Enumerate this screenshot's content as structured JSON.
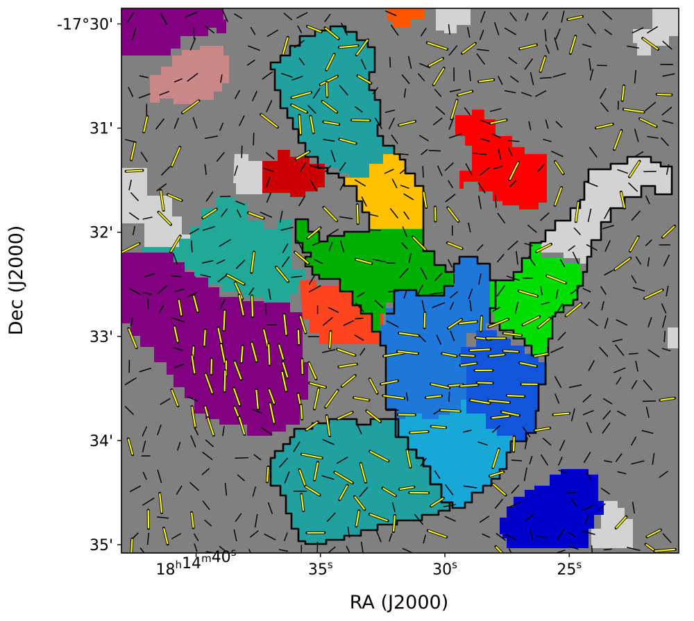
{
  "chart_data": {
    "type": "heatmap",
    "description_kind": "sky map with segmented regions and polarization vectors",
    "xlabel": "RA (J2000)",
    "ylabel": "Dec (J2000)",
    "x_ticks": [
      {
        "ra_sec": 40,
        "label_main": "18",
        "sup_h": "h",
        "label_min": "14",
        "sup_m": "m",
        "label_sec": "40",
        "sup_s": "s"
      },
      {
        "ra_sec": 35,
        "label_sec": "35",
        "sup_s": "s"
      },
      {
        "ra_sec": 30,
        "label_sec": "30",
        "sup_s": "s"
      },
      {
        "ra_sec": 25,
        "label_sec": "25",
        "sup_s": "s"
      }
    ],
    "y_ticks": [
      {
        "dec_arcmin": 30,
        "label": "-17°30'"
      },
      {
        "dec_arcmin": 31,
        "label": "31'"
      },
      {
        "dec_arcmin": 32,
        "label": "32'"
      },
      {
        "dec_arcmin": 33,
        "label": "33'"
      },
      {
        "dec_arcmin": 34,
        "label": "34'"
      },
      {
        "dec_arcmin": 35,
        "label": "35'"
      }
    ],
    "x_range_ra_sec": [
      43,
      20.6
    ],
    "y_range_dec_arcmin": [
      29.85,
      35.08
    ],
    "colors": {
      "background": "#808080",
      "light_gray": "#d3d3d3",
      "purple": "#800080",
      "rosy": "#cc8888",
      "teal": "#20a0a0",
      "seagreen": "#20a898",
      "red": "#ff0000",
      "darkred": "#cc0000",
      "orange_red": "#ff4422",
      "orange": "#ff5500",
      "gold": "#ffc000",
      "green": "#00b000",
      "lime": "#00dd00",
      "blue_mid": "#1e78dc",
      "blue_a": "#0066dd",
      "blue_b": "#1155dd",
      "sky": "#18a8d8",
      "navy": "#0000cc",
      "vector_yellow": "#ffff00",
      "vector_black": "#000000",
      "outline": "#000000"
    },
    "regions": [
      {
        "name": "purple-top-left",
        "color": "purple"
      },
      {
        "name": "rosy-blob",
        "color": "rosy"
      },
      {
        "name": "teal-north",
        "color": "teal",
        "outlined": true
      },
      {
        "name": "gold-neck",
        "color": "gold",
        "outlined": true
      },
      {
        "name": "green-center",
        "color": "green",
        "outlined": true
      },
      {
        "name": "blue-core",
        "color": "blue_mid",
        "outlined": true
      },
      {
        "name": "teal-south",
        "color": "teal",
        "outlined": true
      },
      {
        "name": "purple-west",
        "color": "purple"
      },
      {
        "name": "seagreen-west",
        "color": "seagreen"
      },
      {
        "name": "red-east",
        "color": "red"
      },
      {
        "name": "darkred-small",
        "color": "darkred"
      },
      {
        "name": "orange-red",
        "color": "orange_red"
      },
      {
        "name": "lime-east",
        "color": "lime",
        "outlined": true
      },
      {
        "name": "gray-arm",
        "color": "light_gray",
        "outlined": true
      },
      {
        "name": "navy-southeast",
        "color": "navy"
      }
    ]
  }
}
